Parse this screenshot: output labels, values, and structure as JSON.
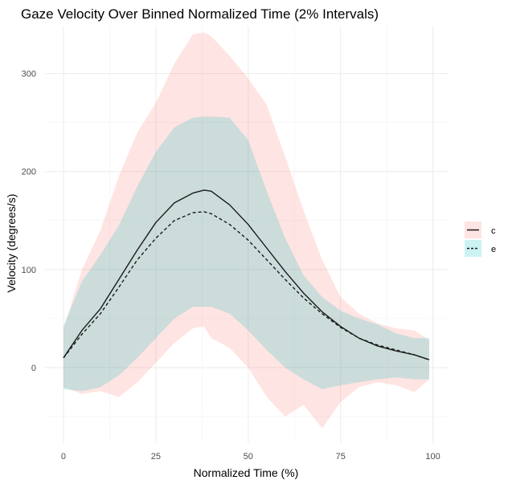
{
  "chart_data": {
    "type": "line",
    "title": "Gaze Velocity Over Binned Normalized Time (2% Intervals)",
    "xlabel": "Normalized Time (%)",
    "ylabel": "Velocity (degrees/s)",
    "xlim": [
      -5,
      104
    ],
    "ylim": [
      -77,
      348
    ],
    "xticks": [
      0,
      25,
      50,
      75,
      100
    ],
    "yticks": [
      0,
      100,
      200,
      300
    ],
    "grid": true,
    "legend_position": "right",
    "series": [
      {
        "name": "c",
        "color": "#1a1a1a",
        "band_color": "#f8766d",
        "linestyle": "solid",
        "x": [
          0,
          5,
          10,
          15,
          20,
          25,
          30,
          35,
          38,
          40,
          45,
          50,
          55,
          60,
          65,
          70,
          75,
          80,
          85,
          90,
          95,
          99
        ],
        "y": [
          10,
          38,
          60,
          90,
          120,
          148,
          168,
          178,
          181,
          180,
          166,
          146,
          122,
          98,
          76,
          57,
          42,
          30,
          22,
          17,
          13,
          8
        ],
        "upper": [
          40,
          100,
          140,
          195,
          240,
          270,
          310,
          340,
          342,
          338,
          318,
          295,
          268,
          215,
          160,
          110,
          72,
          55,
          45,
          40,
          38,
          28
        ],
        "lower": [
          -20,
          -27,
          -24,
          -30,
          -15,
          5,
          25,
          40,
          42,
          30,
          20,
          0,
          -30,
          -50,
          -38,
          -62,
          -35,
          -20,
          -15,
          -18,
          -25,
          -12
        ]
      },
      {
        "name": "e",
        "color": "#1a1a1a",
        "band_color": "#00bfc4",
        "linestyle": "dashed",
        "x": [
          0,
          5,
          10,
          15,
          20,
          25,
          30,
          35,
          38,
          40,
          45,
          50,
          55,
          60,
          65,
          70,
          75,
          80,
          85,
          90,
          95,
          99
        ],
        "y": [
          10,
          34,
          55,
          82,
          110,
          132,
          150,
          158,
          159,
          157,
          146,
          130,
          110,
          90,
          71,
          55,
          41,
          30,
          23,
          18,
          13,
          8
        ],
        "upper": [
          42,
          88,
          115,
          145,
          185,
          220,
          245,
          255,
          256,
          256,
          255,
          232,
          180,
          132,
          94,
          72,
          58,
          50,
          44,
          35,
          30,
          30
        ],
        "lower": [
          -22,
          -24,
          -20,
          -8,
          10,
          30,
          50,
          62,
          62,
          62,
          55,
          38,
          18,
          0,
          -12,
          -22,
          -18,
          -15,
          -12,
          -10,
          -12,
          -12
        ]
      }
    ]
  }
}
